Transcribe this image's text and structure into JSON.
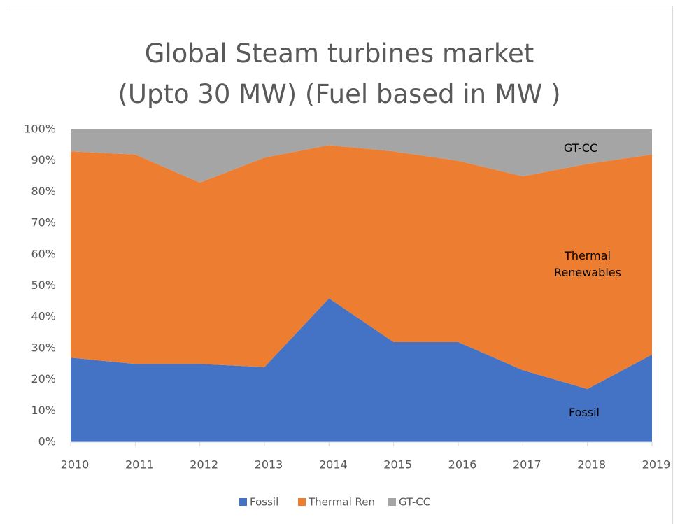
{
  "chart_data": {
    "type": "stacked_area",
    "title": "Global Steam turbines market  (Upto 30 MW)  (Fuel based in MW )",
    "x": [
      2010,
      2011,
      2012,
      2013,
      2014,
      2015,
      2016,
      2017,
      2018,
      2019
    ],
    "xlim": [
      2010,
      2019
    ],
    "xticks": [
      2010,
      2011,
      2012,
      2013,
      2014,
      2015,
      2016,
      2017,
      2018,
      2019
    ],
    "ylim": [
      0,
      100
    ],
    "yticks": [
      {
        "value": 0,
        "label": "0%"
      },
      {
        "value": 10,
        "label": "10%"
      },
      {
        "value": 20,
        "label": "20%"
      },
      {
        "value": 30,
        "label": "30%"
      },
      {
        "value": 40,
        "label": "40%"
      },
      {
        "value": 50,
        "label": "50%"
      },
      {
        "value": 60,
        "label": "60%"
      },
      {
        "value": 70,
        "label": "70%"
      },
      {
        "value": 80,
        "label": "80%"
      },
      {
        "value": 90,
        "label": "90%"
      },
      {
        "value": 100,
        "label": "100%"
      }
    ],
    "series": [
      {
        "name": "Fossil",
        "color": "#4472c4",
        "values": [
          27,
          25,
          25,
          24,
          46,
          32,
          32,
          23,
          17,
          28
        ]
      },
      {
        "name": "Thermal Ren",
        "color": "#ed7d31",
        "values": [
          66,
          67,
          58,
          67,
          49,
          61,
          58,
          62,
          72,
          64
        ]
      },
      {
        "name": "GT-CC",
        "color": "#a5a5a5",
        "values": [
          7,
          8,
          17,
          9,
          5,
          7,
          10,
          15,
          11,
          8
        ]
      }
    ],
    "annotations": [
      "GT-CC",
      "Thermal Renewables",
      "Fossil"
    ],
    "legend": "bottom"
  }
}
